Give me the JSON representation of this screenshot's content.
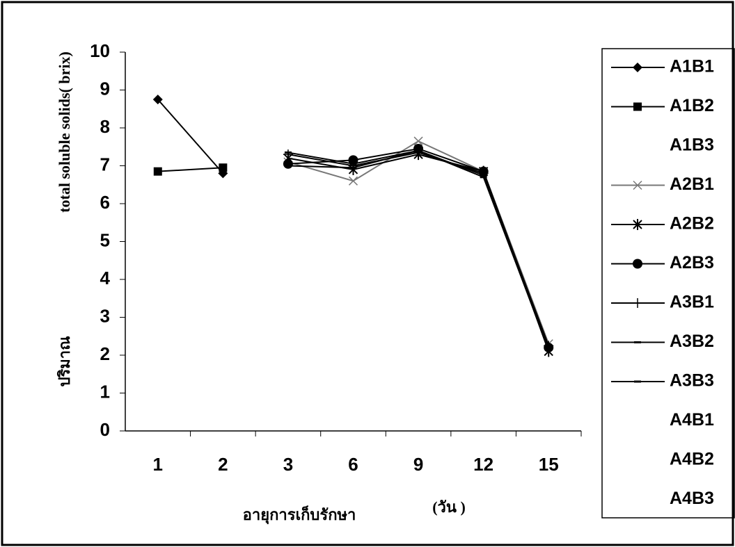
{
  "chart_data": {
    "type": "line",
    "y_label": "total soluble solids( brix)",
    "y_label_2": "ปริมาณ",
    "x_label": "อายุการเก็บรักษา",
    "x_label_2": "(วัน )",
    "categories": [
      "1",
      "2",
      "3",
      "6",
      "9",
      "12",
      "15"
    ],
    "ylim": [
      0,
      10
    ],
    "yticks": [
      0,
      1,
      2,
      3,
      4,
      5,
      6,
      7,
      8,
      9,
      10
    ],
    "series": [
      {
        "name": "A1B1",
        "color": "#000000",
        "marker": "diamond",
        "values": [
          8.75,
          6.8,
          null,
          null,
          null,
          null,
          null
        ]
      },
      {
        "name": "A1B2",
        "color": "#000000",
        "marker": "square",
        "values": [
          6.85,
          6.95,
          null,
          null,
          null,
          null,
          null
        ]
      },
      {
        "name": "A1B3",
        "color": "#000000",
        "marker": "none",
        "values": [
          null,
          null,
          null,
          null,
          null,
          null,
          null
        ]
      },
      {
        "name": "A2B1",
        "color": "#777777",
        "marker": "x",
        "values": [
          null,
          null,
          7.1,
          6.6,
          7.65,
          6.85,
          2.3
        ]
      },
      {
        "name": "A2B2",
        "color": "#000000",
        "marker": "star",
        "values": [
          null,
          null,
          7.2,
          6.9,
          7.3,
          6.85,
          2.1
        ]
      },
      {
        "name": "A2B3",
        "color": "#000000",
        "marker": "circle",
        "values": [
          null,
          null,
          7.05,
          7.15,
          7.45,
          6.85,
          2.2
        ]
      },
      {
        "name": "A3B1",
        "color": "#000000",
        "marker": "plus",
        "values": [
          null,
          null,
          7.3,
          7.0,
          7.35,
          6.8,
          2.25
        ]
      },
      {
        "name": "A3B2",
        "color": "#000000",
        "marker": "dash",
        "values": [
          null,
          null,
          7.35,
          7.05,
          7.4,
          6.75,
          2.2
        ]
      },
      {
        "name": "A3B3",
        "color": "#000000",
        "marker": "dash",
        "values": [
          null,
          null,
          7.0,
          6.95,
          7.4,
          6.7,
          2.15
        ]
      },
      {
        "name": "A4B1",
        "color": "#000000",
        "marker": "none",
        "values": [
          null,
          null,
          null,
          null,
          null,
          null,
          null
        ]
      },
      {
        "name": "A4B2",
        "color": "#000000",
        "marker": "none",
        "values": [
          null,
          null,
          null,
          null,
          null,
          null,
          null
        ]
      },
      {
        "name": "A4B3",
        "color": "#000000",
        "marker": "none",
        "values": [
          null,
          null,
          null,
          null,
          null,
          null,
          null
        ]
      }
    ]
  }
}
